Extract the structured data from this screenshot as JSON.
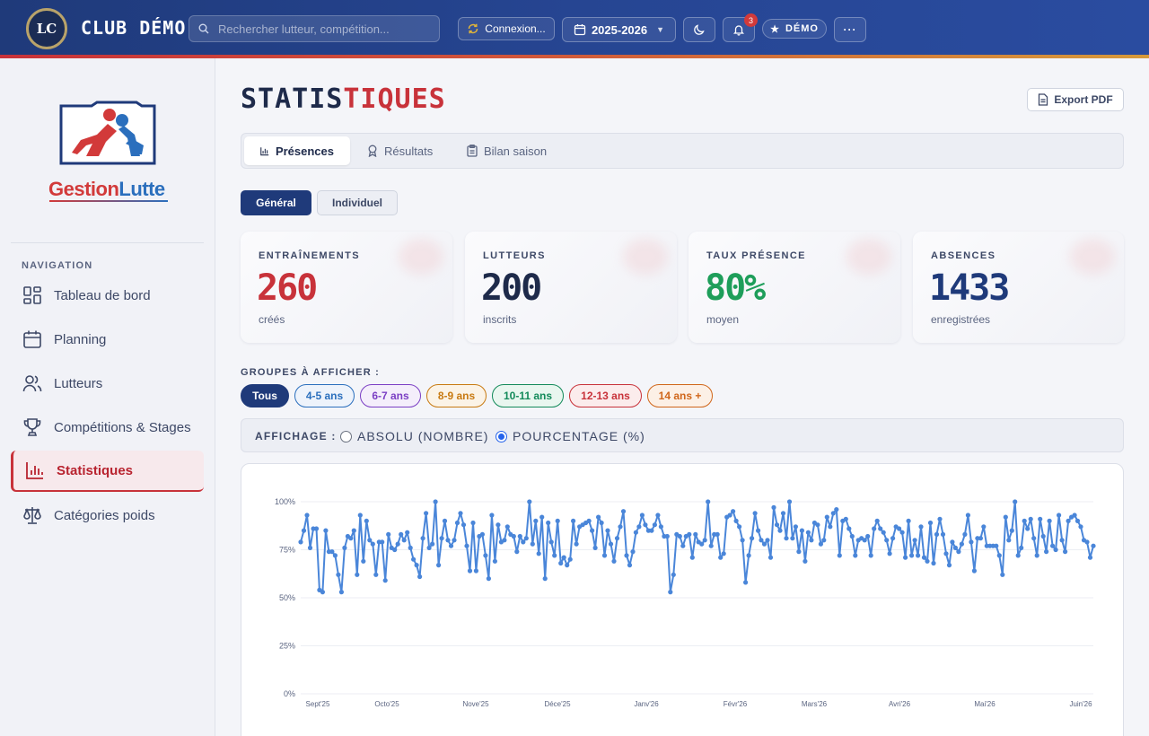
{
  "header": {
    "logo_text": "LC",
    "club_name": "CLUB DÉMO",
    "search_placeholder": "Rechercher lutteur, compétition...",
    "connection_label": "Connexion...",
    "season_label": "2025-2026",
    "notification_count": "3",
    "demo_label": "DÉMO"
  },
  "sidebar": {
    "brand_part1": "Gestion",
    "brand_part2": "Lutte",
    "section_title": "NAVIGATION",
    "items": [
      {
        "label": "Tableau de bord",
        "icon": "dashboard-icon"
      },
      {
        "label": "Planning",
        "icon": "calendar-icon"
      },
      {
        "label": "Lutteurs",
        "icon": "users-icon"
      },
      {
        "label": "Compétitions & Stages",
        "icon": "trophy-icon"
      },
      {
        "label": "Statistiques",
        "icon": "bar-chart-icon",
        "active": true
      },
      {
        "label": "Catégories poids",
        "icon": "scale-icon"
      }
    ]
  },
  "main": {
    "title_part1": "STATIS",
    "title_part2": "TIQUES",
    "export_label": "Export PDF",
    "tabs": [
      {
        "label": "Présences",
        "active": true
      },
      {
        "label": "Résultats"
      },
      {
        "label": "Bilan saison"
      }
    ],
    "view_toggle": {
      "general": "Général",
      "individual": "Individuel"
    },
    "cards": [
      {
        "label": "ENTRAÎNEMENTS",
        "value": "260",
        "sub": "créés",
        "color": "#c8323a"
      },
      {
        "label": "LUTTEURS",
        "value": "200",
        "sub": "inscrits",
        "color": "#1e2a4a"
      },
      {
        "label": "TAUX PRÉSENCE",
        "value": "80%",
        "sub": "moyen",
        "color": "#1e9e5a"
      },
      {
        "label": "ABSENCES",
        "value": "1433",
        "sub": "enregistrées",
        "color": "#1f3a7a"
      }
    ],
    "groups_label": "GROUPES À AFFICHER :",
    "groups": [
      {
        "label": "Tous",
        "color": "#1f3a7a",
        "active": true
      },
      {
        "label": "4-5 ans",
        "color": "#2b6fbd"
      },
      {
        "label": "6-7 ans",
        "color": "#7b3fc4"
      },
      {
        "label": "8-9 ans",
        "color": "#c87a12"
      },
      {
        "label": "10-11 ans",
        "color": "#138a5a"
      },
      {
        "label": "12-13 ans",
        "color": "#c8323a"
      },
      {
        "label": "14 ans +",
        "color": "#d0661a"
      }
    ],
    "display_label": "AFFICHAGE :",
    "display_absolute": "ABSOLU (NOMBRE)",
    "display_percent": "POURCENTAGE (%)"
  },
  "chart_data": {
    "type": "line",
    "x_ticks": [
      "Sept'25",
      "Octo'25",
      "Nove'25",
      "Déce'25",
      "Janv'26",
      "Févr'26",
      "Mars'26",
      "Avri'26",
      "Mai'26",
      "Juin'26"
    ],
    "y_ticks": [
      "0%",
      "25%",
      "50%",
      "75%",
      "100%"
    ],
    "ylim": [
      0,
      100
    ],
    "grid": true,
    "color": "#4a86d9",
    "series": [
      {
        "values": [
          79,
          85,
          93,
          76,
          86,
          86,
          54,
          53,
          85,
          74,
          74,
          72,
          62,
          53,
          76,
          82,
          81,
          85,
          62,
          93,
          69,
          90,
          80,
          78,
          62,
          79,
          79,
          59,
          83,
          76,
          75,
          78,
          83,
          80,
          84,
          76,
          70,
          67,
          61,
          81,
          94,
          76,
          78,
          100,
          67,
          81,
          90,
          80,
          77,
          80,
          89,
          94,
          88,
          77,
          64,
          89,
          64,
          82,
          83,
          72,
          60,
          93,
          69,
          88,
          79,
          80,
          87,
          83,
          82,
          74,
          82,
          79,
          81,
          100,
          78,
          90,
          73,
          92,
          60,
          89,
          79,
          72,
          90,
          68,
          71,
          67,
          70,
          90,
          78,
          87,
          88,
          89,
          90,
          85,
          76,
          92,
          89,
          72,
          85,
          78,
          69,
          81,
          87,
          95,
          72,
          67,
          74,
          84,
          87,
          93,
          88,
          85,
          85,
          88,
          93,
          87,
          82,
          82,
          53,
          62,
          83,
          82,
          77,
          82,
          83,
          71,
          83,
          79,
          78,
          80,
          100,
          77,
          83,
          83,
          71,
          73,
          92,
          93,
          95,
          90,
          87,
          80,
          58,
          72,
          81,
          94,
          85,
          80,
          78,
          80,
          71,
          97,
          88,
          85,
          94,
          81,
          100,
          81,
          87,
          74,
          85,
          69,
          84,
          80,
          89,
          88,
          78,
          80,
          92,
          87,
          94,
          96,
          72,
          90,
          91,
          86,
          82,
          72,
          80,
          81,
          80,
          82,
          72,
          86,
          90,
          86,
          84,
          80,
          73,
          81,
          87,
          86,
          84,
          71,
          90,
          72,
          80,
          72,
          87,
          71,
          69,
          89,
          68,
          83,
          91,
          83,
          73,
          67,
          79,
          76,
          74,
          78,
          83,
          93,
          79,
          64,
          81,
          81,
          87,
          77,
          77,
          77,
          77,
          72,
          62,
          92,
          80,
          85,
          100,
          72,
          76,
          90,
          86,
          91,
          81,
          72,
          91,
          82,
          74,
          90,
          77,
          75,
          93,
          80,
          74,
          90,
          92,
          93,
          90,
          87,
          80,
          79,
          71,
          77
        ]
      }
    ]
  }
}
